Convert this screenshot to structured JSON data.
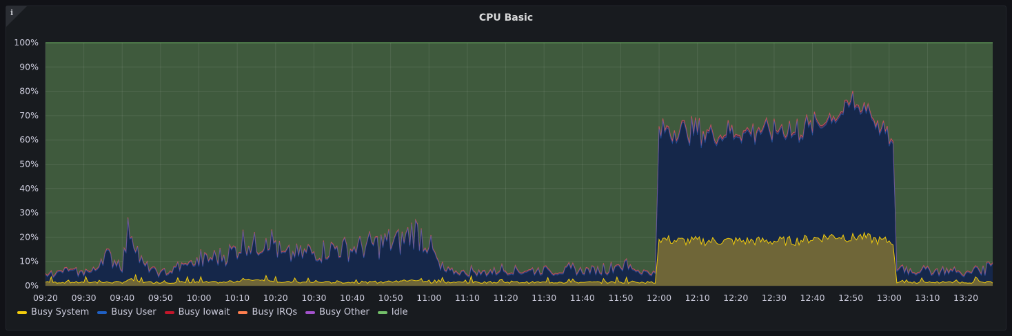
{
  "panel": {
    "title": "CPU Basic",
    "info_icon": "info-icon"
  },
  "chart_data": {
    "type": "area",
    "title": "CPU Basic",
    "ylim": [
      0,
      100
    ],
    "yticks": [
      "0%",
      "10%",
      "20%",
      "30%",
      "40%",
      "50%",
      "60%",
      "70%",
      "80%",
      "90%",
      "100%"
    ],
    "xticks": [
      "09:20",
      "09:30",
      "09:40",
      "09:50",
      "10:00",
      "10:10",
      "10:20",
      "10:30",
      "10:40",
      "10:50",
      "11:00",
      "11:10",
      "11:20",
      "11:30",
      "11:40",
      "11:50",
      "12:00",
      "12:10",
      "12:20",
      "12:30",
      "12:40",
      "12:50",
      "13:00",
      "13:10",
      "13:20"
    ],
    "x_range": [
      "09:20",
      "13:27"
    ],
    "grid": true,
    "legend_position": "bottom-left",
    "stacked": true,
    "x_minutes_keypoints": [
      "09:20",
      "09:25",
      "09:30",
      "09:33",
      "09:35",
      "09:40",
      "09:42",
      "09:45",
      "09:50",
      "09:55",
      "10:00",
      "10:05",
      "10:08",
      "10:12",
      "10:15",
      "10:18",
      "10:22",
      "10:28",
      "10:35",
      "10:40",
      "10:45",
      "10:49",
      "10:53",
      "10:56",
      "11:00",
      "11:03",
      "11:10",
      "11:20",
      "11:30",
      "11:40",
      "11:45",
      "11:50",
      "11:55",
      "11:59",
      "12:00",
      "12:05",
      "12:10",
      "12:20",
      "12:30",
      "12:35",
      "12:40",
      "12:45",
      "12:48",
      "12:50",
      "12:52",
      "12:55",
      "12:58",
      "13:00",
      "13:01",
      "13:02",
      "13:03",
      "13:05",
      "13:10",
      "13:15",
      "13:20",
      "13:23",
      "13:25",
      "13:27"
    ],
    "series": [
      {
        "name": "Busy System",
        "color": "#f2cc0c",
        "values": [
          1,
          1,
          1,
          1,
          1,
          1,
          2,
          1,
          1,
          1,
          1,
          1,
          1,
          2,
          2,
          2,
          1,
          1,
          1,
          1,
          1,
          1,
          1,
          2,
          1,
          1,
          1,
          1,
          1,
          1,
          1,
          1,
          1,
          1,
          19,
          18,
          18,
          18,
          18,
          18,
          19,
          20,
          20,
          19,
          20,
          19,
          18,
          18,
          18,
          1,
          1,
          1,
          1,
          1,
          1,
          1,
          1,
          1
        ]
      },
      {
        "name": "Busy User",
        "color": "#1f60c4",
        "values": [
          2,
          4,
          3,
          4,
          10,
          6,
          20,
          6,
          3,
          5,
          7,
          9,
          10,
          14,
          12,
          16,
          9,
          10,
          12,
          12,
          13,
          14,
          14,
          18,
          14,
          4,
          3,
          4,
          4,
          4,
          4,
          6,
          4,
          3,
          44,
          45,
          44,
          44,
          45,
          45,
          46,
          49,
          51,
          56,
          53,
          52,
          44,
          42,
          39,
          5,
          5,
          4,
          4,
          4,
          3,
          4,
          4,
          9
        ]
      },
      {
        "name": "Busy Iowait",
        "color": "#c4162a",
        "values": [
          0,
          0,
          0,
          0,
          0,
          0,
          0,
          0,
          0,
          0,
          0,
          0,
          0,
          0,
          0,
          0,
          0,
          0,
          0,
          0,
          0,
          0,
          0,
          0,
          0,
          0,
          0,
          0,
          0,
          0,
          0,
          0,
          0,
          0,
          0,
          0,
          0,
          0,
          0,
          0,
          0,
          0,
          0,
          0,
          0,
          0,
          0,
          0,
          0,
          0,
          0,
          0,
          0,
          0,
          0,
          0,
          0,
          0
        ]
      },
      {
        "name": "Busy IRQs",
        "color": "#ff7f4f",
        "values": [
          0,
          0,
          0,
          0,
          0,
          0,
          0,
          0,
          0,
          0,
          0,
          0,
          0,
          0,
          0,
          0,
          0,
          0,
          0,
          0,
          0,
          0,
          0,
          0,
          0,
          0,
          0,
          0,
          0,
          0,
          0,
          0,
          0,
          0,
          0,
          0,
          0,
          0,
          0,
          0,
          0,
          0,
          0,
          0,
          0,
          0,
          0,
          0,
          0,
          0,
          0,
          0,
          0,
          0,
          0,
          0,
          0,
          0
        ]
      },
      {
        "name": "Busy Other",
        "color": "#a352cc",
        "values": [
          0.5,
          0.5,
          0.5,
          0.5,
          0.5,
          0.5,
          0.5,
          0.5,
          0.5,
          0.5,
          0.5,
          0.5,
          0.5,
          0.5,
          0.5,
          0.5,
          0.5,
          0.5,
          0.5,
          0.5,
          0.5,
          0.5,
          0.5,
          0.5,
          0.5,
          0.5,
          0.5,
          0.5,
          0.5,
          0.5,
          0.5,
          0.5,
          0.5,
          0.5,
          1,
          1,
          1,
          1,
          1,
          1,
          1,
          1,
          1,
          1,
          1,
          1,
          1,
          1,
          1,
          0.5,
          0.5,
          0.5,
          0.5,
          0.5,
          0.5,
          0.5,
          0.5,
          0.5
        ]
      },
      {
        "name": "Idle",
        "color": "#73bf69"
      }
    ]
  },
  "legend": [
    {
      "label": "Busy System",
      "color": "#f2cc0c"
    },
    {
      "label": "Busy User",
      "color": "#1f60c4"
    },
    {
      "label": "Busy Iowait",
      "color": "#c4162a"
    },
    {
      "label": "Busy IRQs",
      "color": "#ff7f4f"
    },
    {
      "label": "Busy Other",
      "color": "#a352cc"
    },
    {
      "label": "Idle",
      "color": "#73bf69"
    }
  ]
}
